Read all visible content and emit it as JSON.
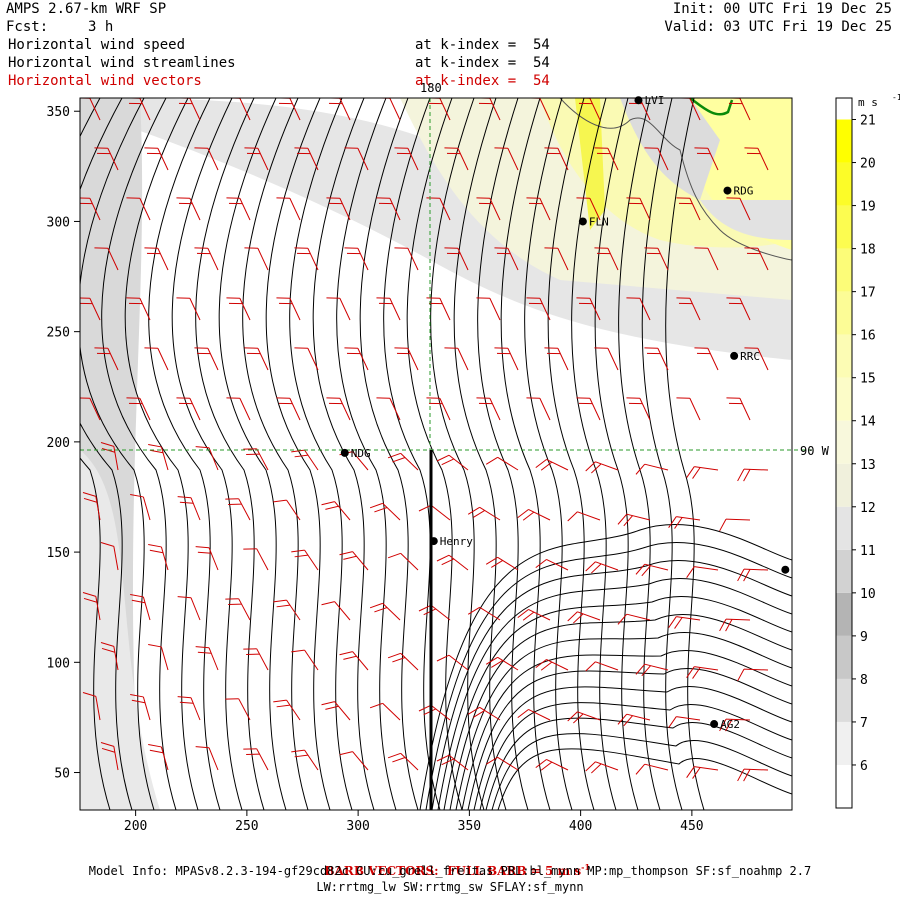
{
  "header": {
    "title": "AMPS 2.67-km WRF SP",
    "fcst_label": "Fcst:",
    "fcst_value": "3 h",
    "init": "Init: 00 UTC Fri 19 Dec 25",
    "valid": "Valid: 03 UTC Fri 19 Dec 25"
  },
  "fields": [
    {
      "name": "Horizontal wind speed",
      "level": "at k-index =  54",
      "color": "#000000"
    },
    {
      "name": "Horizontal wind streamlines",
      "level": "at k-index =  54",
      "color": "#000000"
    },
    {
      "name": "Horizontal wind vectors",
      "level": "at k-index =  54",
      "color": "#d00000"
    }
  ],
  "axes": {
    "x_ticks": [
      200,
      250,
      300,
      350,
      400,
      450
    ],
    "y_ticks": [
      50,
      100,
      150,
      200,
      250,
      300,
      350
    ],
    "x_range": [
      175,
      495
    ],
    "y_range": [
      33,
      356
    ]
  },
  "grid_lines": {
    "lon_label": "180",
    "lat_label": "90 W"
  },
  "stations": [
    {
      "id": "LVI",
      "x": 426,
      "y": 355
    },
    {
      "id": "RDG",
      "x": 466,
      "y": 314
    },
    {
      "id": "FLN",
      "x": 401,
      "y": 300
    },
    {
      "id": "RRC",
      "x": 469,
      "y": 239
    },
    {
      "id": "NDG",
      "x": 294,
      "y": 195
    },
    {
      "id": "Henry",
      "x": 334,
      "y": 155
    },
    {
      "id": "AG2",
      "x": 460,
      "y": 72
    },
    {
      "id": "",
      "x": 492,
      "y": 142
    }
  ],
  "colorbar": {
    "unit": "m s",
    "unit_exp": "-1",
    "ticks": [
      6,
      7,
      8,
      9,
      10,
      11,
      12,
      13,
      14,
      15,
      16,
      17,
      18,
      19,
      20,
      21
    ],
    "colors": [
      "#ffffff",
      "#f0f0f0",
      "#dcdcdc",
      "#c8c8c8",
      "#b4b4b4",
      "#d2d2d2",
      "#e4e4e4",
      "#f0f0dc",
      "#f8f8dc",
      "#fcfcc8",
      "#fcfcb4",
      "#fcfc96",
      "#fcfc78",
      "#fcfc50",
      "#fcfc28",
      "#ffff00"
    ]
  },
  "footer": {
    "barb_text": "BARB VECTORS:  FULL BARB = 5 m s",
    "barb_exp": "-1",
    "model_line1": "Model Info: MPASv8.2.3-194-gf29cd82c CU:cu_grell_freitas PBL:bl_mynn MP:mp_thompson SF:sf_noahmp 2.7",
    "model_line2": "LW:rrtmg_lw SW:rrtmg_sw SFLAY:sf_mynn"
  }
}
